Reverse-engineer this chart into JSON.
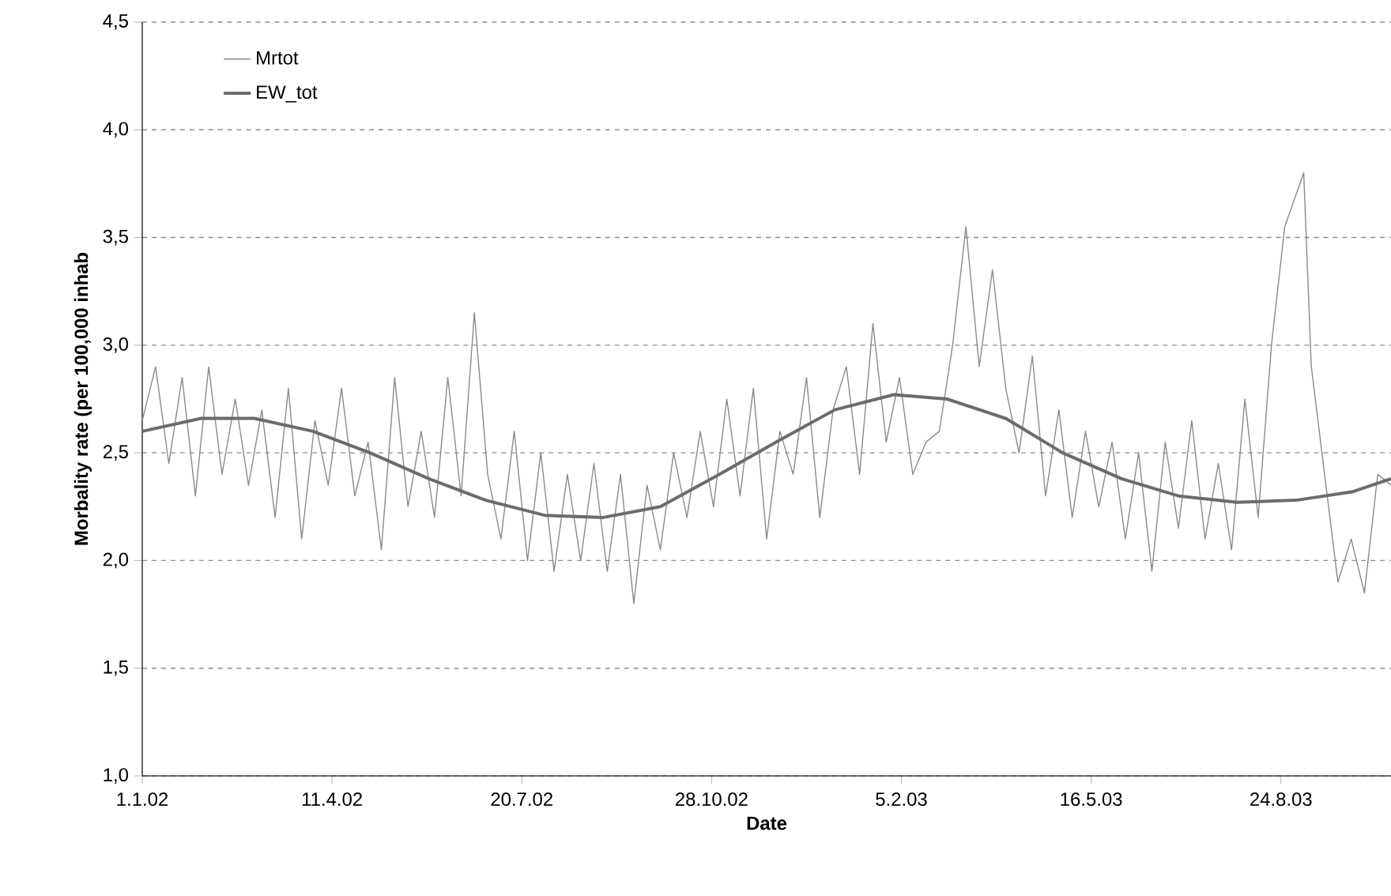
{
  "chart_data": {
    "type": "line",
    "xlabel": "Date",
    "ylabel": "Morbality rate (per 100,000 inhab",
    "xlim": [
      "2002-01-01",
      "2003-10-21"
    ],
    "xticks": [
      {
        "value": "2002-01-01",
        "label": "1.1.02"
      },
      {
        "value": "2002-04-11",
        "label": "11.4.02"
      },
      {
        "value": "2002-07-20",
        "label": "20.7.02"
      },
      {
        "value": "2002-10-28",
        "label": "28.10.02"
      },
      {
        "value": "2003-02-05",
        "label": "5.2.03"
      },
      {
        "value": "2003-05-16",
        "label": "16.5.03"
      },
      {
        "value": "2003-08-24",
        "label": "24.8.03"
      }
    ],
    "ylim": [
      1.0,
      4.5
    ],
    "yticks": [
      {
        "value": 1.0,
        "label": "1,0"
      },
      {
        "value": 1.5,
        "label": "1,5"
      },
      {
        "value": 2.0,
        "label": "2,0"
      },
      {
        "value": 2.5,
        "label": "2,5"
      },
      {
        "value": 3.0,
        "label": "3,0"
      },
      {
        "value": 3.5,
        "label": "3,5"
      },
      {
        "value": 4.0,
        "label": "4,0"
      },
      {
        "value": 4.5,
        "label": "4,5"
      }
    ],
    "grid": "y",
    "legend": "top left",
    "series": [
      {
        "name": "Mrtot",
        "color": "#8a8a8a",
        "x": [
          "2002-01-01",
          "2002-01-08",
          "2002-01-15",
          "2002-01-22",
          "2002-01-29",
          "2002-02-05",
          "2002-02-12",
          "2002-02-19",
          "2002-02-26",
          "2002-03-05",
          "2002-03-12",
          "2002-03-19",
          "2002-03-26",
          "2002-04-02",
          "2002-04-09",
          "2002-04-16",
          "2002-04-23",
          "2002-04-30",
          "2002-05-07",
          "2002-05-14",
          "2002-05-21",
          "2002-05-28",
          "2002-06-04",
          "2002-06-11",
          "2002-06-18",
          "2002-06-25",
          "2002-07-02",
          "2002-07-09",
          "2002-07-16",
          "2002-07-23",
          "2002-07-30",
          "2002-08-06",
          "2002-08-13",
          "2002-08-20",
          "2002-08-27",
          "2002-09-03",
          "2002-09-10",
          "2002-09-17",
          "2002-09-24",
          "2002-10-01",
          "2002-10-08",
          "2002-10-15",
          "2002-10-22",
          "2002-10-29",
          "2002-11-05",
          "2002-11-12",
          "2002-11-19",
          "2002-11-26",
          "2002-12-03",
          "2002-12-10",
          "2002-12-17",
          "2002-12-24",
          "2002-12-31",
          "2003-01-07",
          "2003-01-14",
          "2003-01-21",
          "2003-01-28",
          "2003-02-04",
          "2003-02-11",
          "2003-02-18",
          "2003-02-25",
          "2003-03-04",
          "2003-03-11",
          "2003-03-18",
          "2003-03-25",
          "2003-04-01",
          "2003-04-08",
          "2003-04-15",
          "2003-04-22",
          "2003-04-29",
          "2003-05-06",
          "2003-05-13",
          "2003-05-20",
          "2003-05-27",
          "2003-06-03",
          "2003-06-10",
          "2003-06-17",
          "2003-06-24",
          "2003-07-01",
          "2003-07-08",
          "2003-07-15",
          "2003-07-22",
          "2003-07-29",
          "2003-08-05",
          "2003-08-12",
          "2003-08-19",
          "2003-08-26",
          "2003-09-05",
          "2003-09-09",
          "2003-09-16",
          "2003-09-23",
          "2003-09-30",
          "2003-10-07",
          "2003-10-14",
          "2003-10-21"
        ],
        "values": [
          2.65,
          2.9,
          2.45,
          2.85,
          2.3,
          2.9,
          2.4,
          2.75,
          2.35,
          2.7,
          2.2,
          2.8,
          2.1,
          2.65,
          2.35,
          2.8,
          2.3,
          2.55,
          2.05,
          2.85,
          2.25,
          2.6,
          2.2,
          2.85,
          2.3,
          3.15,
          2.4,
          2.1,
          2.6,
          2.0,
          2.5,
          1.95,
          2.4,
          2.0,
          2.45,
          1.95,
          2.4,
          1.8,
          2.35,
          2.05,
          2.5,
          2.2,
          2.6,
          2.25,
          2.75,
          2.3,
          2.8,
          2.1,
          2.6,
          2.4,
          2.85,
          2.2,
          2.7,
          2.9,
          2.4,
          3.1,
          2.55,
          2.85,
          2.4,
          2.55,
          2.6,
          3.0,
          3.55,
          2.9,
          3.35,
          2.8,
          2.5,
          2.95,
          2.3,
          2.7,
          2.2,
          2.6,
          2.25,
          2.55,
          2.1,
          2.5,
          1.95,
          2.55,
          2.15,
          2.65,
          2.1,
          2.45,
          2.05,
          2.75,
          2.2,
          3.0,
          3.55,
          3.8,
          2.9,
          2.4,
          1.9,
          2.1,
          1.85,
          2.4,
          2.35
        ]
      },
      {
        "name": "EW_tot",
        "color": "#6b6b6b",
        "x": [
          "2002-01-01",
          "2002-02-01",
          "2002-03-01",
          "2002-04-01",
          "2002-05-01",
          "2002-06-01",
          "2002-07-01",
          "2002-08-01",
          "2002-09-01",
          "2002-10-01",
          "2002-11-01",
          "2002-12-01",
          "2003-01-01",
          "2003-02-01",
          "2003-03-01",
          "2003-04-01",
          "2003-05-01",
          "2003-06-01",
          "2003-07-01",
          "2003-08-01",
          "2003-09-01",
          "2003-10-01",
          "2003-10-21"
        ],
        "values": [
          2.6,
          2.66,
          2.66,
          2.6,
          2.5,
          2.38,
          2.28,
          2.21,
          2.2,
          2.25,
          2.4,
          2.55,
          2.7,
          2.77,
          2.75,
          2.66,
          2.5,
          2.38,
          2.3,
          2.27,
          2.28,
          2.32,
          2.38
        ]
      }
    ]
  }
}
